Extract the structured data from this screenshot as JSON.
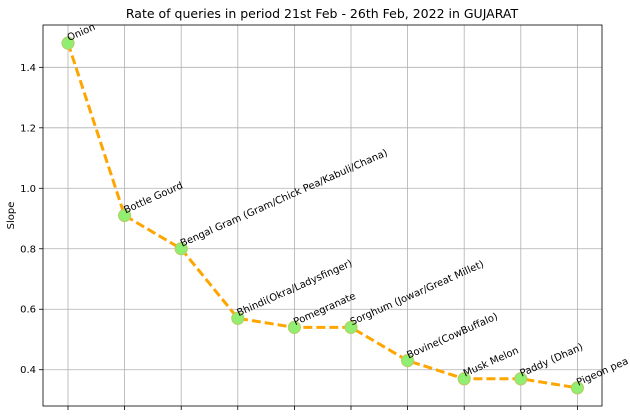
{
  "chart_data": {
    "type": "line",
    "title": "Rate of queries in period 21st Feb - 26th Feb, 2022 in GUJARAT",
    "xlabel": "",
    "ylabel": "Slope",
    "x": [
      "Onion",
      "Bottle Gourd",
      "Bengal Gram (Gram/Chick Pea/Kabuli/Chana)",
      "Bhindi(Okra/Ladysfinger)",
      "Pomegranate",
      "Sorghum (Jowar/Great Millet)",
      "Bovine(CowBuffalo)",
      "Musk Melon",
      "Paddy (Dhan)",
      "Pigeon pea"
    ],
    "series": [
      {
        "values": [
          1.48,
          0.91,
          0.8,
          0.57,
          0.54,
          0.54,
          0.43,
          0.37,
          0.37,
          0.34
        ]
      }
    ],
    "ylim": [
      0.28,
      1.54
    ],
    "yticks": [
      "0.4",
      "0.6",
      "0.8",
      "1.0",
      "1.2",
      "1.4"
    ],
    "grid": true,
    "line_style": "dashed",
    "line_color": "#ffa500",
    "marker_color": "#90ee70",
    "marker_edge_color": "#b4d06a"
  }
}
